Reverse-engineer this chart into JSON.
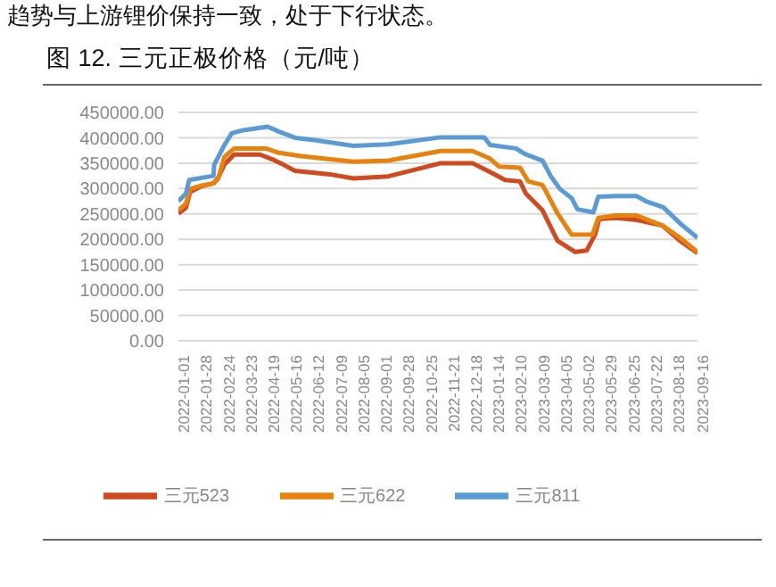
{
  "chart_data": {
    "type": "line",
    "title": "图 12. 三元正极价格（元/吨）",
    "annotations": [
      "趋势与上游锂价保持一致，处于下行状态。"
    ],
    "xlim": [
      "2022-01-01",
      "2023-09-16"
    ],
    "xticks": [
      "2022-01-01",
      "2022-01-28",
      "2022-02-24",
      "2022-03-23",
      "2022-04-19",
      "2022-05-16",
      "2022-06-12",
      "2022-07-09",
      "2022-08-05",
      "2022-09-01",
      "2022-09-28",
      "2022-10-25",
      "2022-11-21",
      "2022-12-18",
      "2023-01-14",
      "2023-02-10",
      "2023-03-09",
      "2023-04-05",
      "2023-05-02",
      "2023-05-29",
      "2023-06-25",
      "2023-07-22",
      "2023-08-18",
      "2023-09-16"
    ],
    "ylim": [
      0,
      450000
    ],
    "yticks": [
      {
        "value": 0,
        "label": "0.00"
      },
      {
        "value": 50000,
        "label": "50000.00"
      },
      {
        "value": 100000,
        "label": "100000.00"
      },
      {
        "value": 150000,
        "label": "150000.00"
      },
      {
        "value": 200000,
        "label": "200000.00"
      },
      {
        "value": 250000,
        "label": "250000.00"
      },
      {
        "value": 300000,
        "label": "300000.00"
      },
      {
        "value": 350000,
        "label": "350000.00"
      },
      {
        "value": 400000,
        "label": "400000.00"
      },
      {
        "value": 450000,
        "label": "450000.00"
      }
    ],
    "grid": "y",
    "legend": "bottom",
    "series": [
      {
        "name": "三元523",
        "color": "#d04a1f",
        "x": [
          "2022-01-01",
          "2022-01-10",
          "2022-01-15",
          "2022-01-29",
          "2022-02-12",
          "2022-02-18",
          "2022-02-25",
          "2022-03-09",
          "2022-04-09",
          "2022-04-23",
          "2022-05-07",
          "2022-05-21",
          "2022-07-02",
          "2022-07-30",
          "2022-09-10",
          "2022-11-12",
          "2022-12-20",
          "2023-01-14",
          "2023-01-28",
          "2023-02-15",
          "2023-02-22",
          "2023-03-14",
          "2023-04-01",
          "2023-04-22",
          "2023-05-06",
          "2023-05-16",
          "2023-05-21",
          "2023-06-10",
          "2023-07-05",
          "2023-08-05",
          "2023-08-26",
          "2023-09-16"
        ],
        "values": [
          251000,
          262000,
          293000,
          305000,
          310000,
          322000,
          347000,
          367000,
          367000,
          358000,
          347000,
          335000,
          328000,
          320000,
          324000,
          350000,
          350000,
          329000,
          317000,
          314000,
          290000,
          257000,
          197000,
          175000,
          178000,
          209000,
          240000,
          242000,
          238000,
          227000,
          197000,
          173000
        ]
      },
      {
        "name": "三元622",
        "color": "#e8820f",
        "x": [
          "2022-01-01",
          "2022-01-10",
          "2022-01-15",
          "2022-01-29",
          "2022-02-12",
          "2022-02-18",
          "2022-02-25",
          "2022-03-09",
          "2022-04-16",
          "2022-04-30",
          "2022-05-28",
          "2022-07-30",
          "2022-09-10",
          "2022-11-12",
          "2022-12-20",
          "2023-01-10",
          "2023-01-21",
          "2023-02-15",
          "2023-02-25",
          "2023-03-14",
          "2023-04-01",
          "2023-04-18",
          "2023-05-13",
          "2023-05-20",
          "2023-06-10",
          "2023-07-05",
          "2023-08-05",
          "2023-08-26",
          "2023-09-16"
        ],
        "values": [
          257000,
          270000,
          299000,
          306000,
          310000,
          320000,
          362000,
          379000,
          379000,
          371000,
          364000,
          353000,
          355000,
          374000,
          374000,
          359000,
          343000,
          341000,
          314000,
          307000,
          251000,
          209000,
          209000,
          242000,
          247000,
          247000,
          227000,
          203000,
          175000
        ]
      },
      {
        "name": "三元811",
        "color": "#5b9bd5",
        "x": [
          "2022-01-01",
          "2022-01-10",
          "2022-01-14",
          "2022-02-12",
          "2022-02-13",
          "2022-02-25",
          "2022-03-06",
          "2022-03-20",
          "2022-04-18",
          "2022-05-02",
          "2022-05-21",
          "2022-06-15",
          "2022-07-30",
          "2022-09-10",
          "2022-11-12",
          "2023-01-03",
          "2023-01-10",
          "2023-02-10",
          "2023-02-21",
          "2023-03-14",
          "2023-03-24",
          "2023-04-04",
          "2023-04-18",
          "2023-04-25",
          "2023-05-14",
          "2023-05-20",
          "2023-06-10",
          "2023-07-05",
          "2023-07-16",
          "2023-08-06",
          "2023-08-27",
          "2023-09-16"
        ],
        "values": [
          275000,
          290000,
          317000,
          325000,
          347000,
          385000,
          409000,
          415000,
          422000,
          412000,
          400000,
          395000,
          384000,
          387000,
          401000,
          401000,
          386000,
          379000,
          368000,
          355000,
          324000,
          299000,
          281000,
          259000,
          253000,
          284000,
          285000,
          285000,
          275000,
          263000,
          230000,
          203000
        ]
      }
    ]
  }
}
